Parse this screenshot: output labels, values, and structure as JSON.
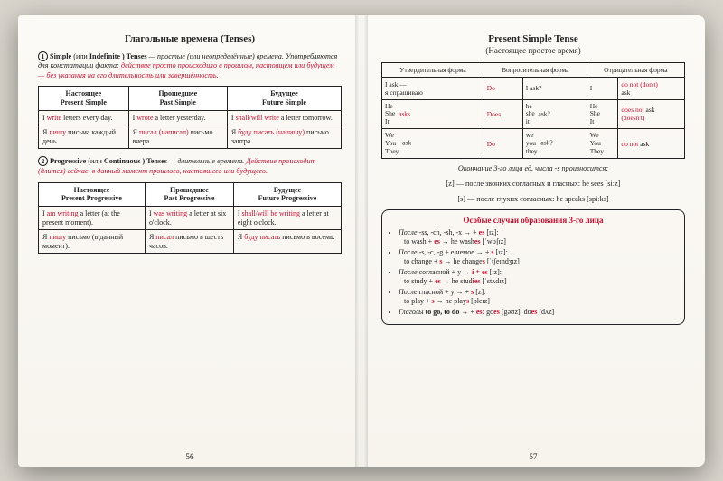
{
  "left": {
    "title": "Глагольные времена (Tenses)",
    "intro1a": "Simple",
    "intro1b": "(или",
    "intro1c": "Indefinite",
    "intro1d": ") Tenses",
    "intro1e": "— простые (или неопределённые) времена. Употребляются для констатации факта:",
    "intro1red": "действие просто происходило в прошлом, настоящем или будущем — без указания на его длительность или завершённость.",
    "t1": {
      "h1a": "Настоящее",
      "h1b": "Present Simple",
      "h2a": "Прошедшее",
      "h2b": "Past Simple",
      "h3a": "Будущее",
      "h3b": "Future Simple",
      "r1c1a": "I",
      "r1c1b": "write",
      "r1c1c": "letters every day.",
      "r1c2a": "I",
      "r1c2b": "wrote",
      "r1c2c": "a letter yesterday.",
      "r1c3a": "I",
      "r1c3b": "shall/will write",
      "r1c3c": "a letter tomorrow.",
      "r2c1a": "Я",
      "r2c1b": "пишу",
      "r2c1c": "письма каждый день.",
      "r2c2a": "Я",
      "r2c2b": "писал (написал)",
      "r2c2c": "письмо вчера.",
      "r2c3a": "Я",
      "r2c3b": "буду писать (напишу)",
      "r2c3c": "письмо завтра."
    },
    "intro2a": "Progressive",
    "intro2b": "(или",
    "intro2c": "Continuous",
    "intro2d": ") Tenses",
    "intro2e": "— длительные времена.",
    "intro2red": "Действие происходит (длится) сейчас, в данный момент прошлого, настоящего или будущего.",
    "t2": {
      "h1a": "Настоящее",
      "h1b": "Present Progressive",
      "h2a": "Прошедшее",
      "h2b": "Past Progressive",
      "h3a": "Будущее",
      "h3b": "Future Progressive",
      "r1c1a": "I",
      "r1c1b": "am writing",
      "r1c1c": "a letter (at the present moment).",
      "r1c2a": "I",
      "r1c2b": "was writing",
      "r1c2c": "a letter at six o'clock.",
      "r1c3a": "I",
      "r1c3b": "shall/will be writing",
      "r1c3c": "a letter at eight o'clock.",
      "r2c1a": "Я",
      "r2c1b": "пишу",
      "r2c1c": "письмо (в данный момент).",
      "r2c2a": "Я",
      "r2c2b": "писал",
      "r2c2c": "письмо в шесть часов.",
      "r2c3a": "Я",
      "r2c3b": "буду писать",
      "r2c3c": "письмо в восемь."
    },
    "pagenum": "56"
  },
  "right": {
    "title": "Present Simple Tense",
    "subtitle": "(Настоящее простое время)",
    "forms_h1": "Утвердительная форма",
    "forms_h2": "Вопросительная форма",
    "forms_h3": "Отрицательная форма",
    "aff_i": "I ask —",
    "aff_i_ru": "я спрашиваю",
    "aff_g2p": "He\nShe\nIt",
    "aff_g2v": "asks",
    "aff_g3p": "We\nYou\nThey",
    "aff_g3v": "ask",
    "q_do": "Do",
    "q_does": "Does",
    "q_i": "I ask?",
    "q_g2": "he\nshe\nit",
    "q_g2v": "ask?",
    "q_g3": "we\nyou\nthey",
    "q_g3v": "ask?",
    "n_i": "I",
    "n_donot": "do not (don't)",
    "n_ask": "ask",
    "n_g2": "He\nShe\nIt",
    "n_doesnot": "does not",
    "n_doesnt": "(doesn't)",
    "n_g3": "We\nYou\nThey",
    "n_donot2": "do not",
    "pron_intro": "Окончание 3-го лица ед. числа -s произносится:",
    "pron_z": "[z] — после звонких согласных и гласных: he sees [siːz]",
    "pron_s": "[s] — после глухих согласных: he speaks [spiːks]",
    "box_title": "Особые случаи образования 3-го лица",
    "b1a": "После",
    "b1b": "-ss, -ch, -sh, -x → +",
    "b1c": "es",
    "b1d": "[ɪz]:",
    "b1e": "to wash +",
    "b1f": "es",
    "b1g": " → he wash",
    "b1h": "es",
    "b1i": " [ˈwɒʃɪz]",
    "b2a": "После",
    "b2b": "-s, -c, -g + e немое → +",
    "b2c": "s",
    "b2d": "[ɪz]:",
    "b2e": "to change +",
    "b2f": "s",
    "b2g": " → he change",
    "b2h": "s",
    "b2i": " [ˈtʃeɪndʒɪz]",
    "b3a": "После",
    "b3b": "согласной + y →",
    "b3c": "i + es",
    "b3d": "[ɪz]:",
    "b3e": "to study +",
    "b3f": "es",
    "b3g": " → he stud",
    "b3h": "ies",
    "b3i": " [ˈstʌdɪz]",
    "b4a": "После",
    "b4b": "гласной + y → +",
    "b4c": "s",
    "b4d": "[z]:",
    "b4e": "to play +",
    "b4f": "s",
    "b4g": " → he play",
    "b4h": "s",
    "b4i": " [pleɪz]",
    "b5a": "Глаголы",
    "b5b": "to go, to do",
    "b5c": " → +",
    "b5d": "es:",
    "b5e": " go",
    "b5f": "es",
    "b5g": " [gəʊz], do",
    "b5h": "es",
    "b5i": " [dʌz]",
    "pagenum": "57"
  },
  "colors": {
    "red": "#c01030",
    "text": "#222222"
  }
}
